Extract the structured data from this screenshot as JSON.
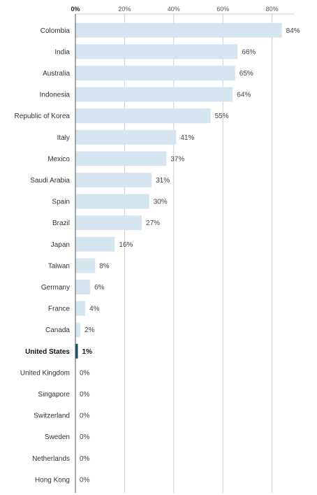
{
  "chart_data": {
    "type": "bar",
    "orientation": "horizontal",
    "title": "",
    "xlabel": "",
    "ylabel": "",
    "xlim": [
      0,
      90
    ],
    "x_ticks": [
      0,
      20,
      40,
      60,
      80
    ],
    "x_tick_labels": [
      "0%",
      "20%",
      "40%",
      "60%",
      "80%"
    ],
    "grid": true,
    "legend": "none",
    "categories": [
      "Colombia",
      "India",
      "Australia",
      "Indonesia",
      "Republic of Korea",
      "Italy",
      "Mexico",
      "Saudi Arabia",
      "Spain",
      "Brazil",
      "Japan",
      "Taiwan",
      "Germany",
      "France",
      "Canada",
      "United States",
      "United Kingdom",
      "Singapore",
      "Switzerland",
      "Sweden",
      "Netherlands",
      "Hong Kong"
    ],
    "values": [
      84,
      66,
      65,
      64,
      55,
      41,
      37,
      31,
      30,
      27,
      16,
      8,
      6,
      4,
      2,
      1,
      0,
      0,
      0,
      0,
      0,
      0
    ],
    "value_labels": [
      "84%",
      "66%",
      "65%",
      "64%",
      "55%",
      "41%",
      "37%",
      "31%",
      "30%",
      "27%",
      "16%",
      "8%",
      "6%",
      "4%",
      "2%",
      "1%",
      "0%",
      "0%",
      "0%",
      "0%",
      "0%",
      "0%"
    ],
    "highlight_category": "United States",
    "colors": {
      "bar": "#d5e6f1",
      "highlight_bar": "#1c4f63",
      "grid": "#cfcfcf",
      "axis": "#555555"
    }
  }
}
